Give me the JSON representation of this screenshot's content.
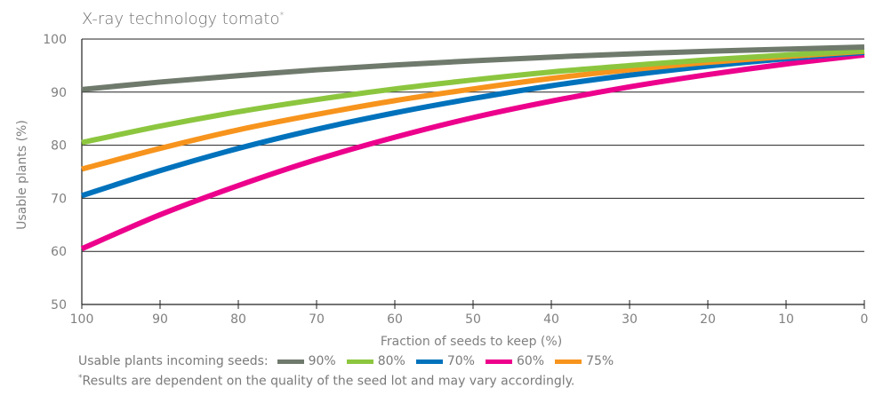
{
  "chart_data": {
    "type": "line",
    "title": "X-ray technology tomato",
    "title_marker": "*",
    "xlabel": "Fraction of seeds to keep (%)",
    "ylabel": "Usable plants (%)",
    "x": [
      100,
      90,
      80,
      70,
      60,
      50,
      40,
      30,
      20,
      10,
      0
    ],
    "x_tick_labels": [
      "100",
      "90",
      "80",
      "70",
      "60",
      "50",
      "40",
      "30",
      "20",
      "10",
      "0"
    ],
    "xlim": [
      100,
      0
    ],
    "ylim": [
      50,
      100
    ],
    "y_ticks": [
      50,
      60,
      70,
      80,
      90,
      100
    ],
    "y_tick_labels": [
      "50",
      "60",
      "70",
      "80",
      "90",
      "100"
    ],
    "grid": "horizontal",
    "legend_title": "Usable plants incoming seeds:",
    "series": [
      {
        "name": "90%",
        "color": "#6f7a6c",
        "values": [
          90.5,
          91.9,
          93.1,
          94.2,
          95.1,
          95.9,
          96.6,
          97.2,
          97.7,
          98.1,
          98.5
        ]
      },
      {
        "name": "80%",
        "color": "#8cc63f",
        "values": [
          80.5,
          83.6,
          86.3,
          88.6,
          90.6,
          92.3,
          93.8,
          95.0,
          96.1,
          97.0,
          97.8
        ]
      },
      {
        "name": "70%",
        "color": "#0072bc",
        "values": [
          70.5,
          75.2,
          79.4,
          83.0,
          86.1,
          88.8,
          91.2,
          93.2,
          94.9,
          96.3,
          97.5
        ]
      },
      {
        "name": "60%",
        "color": "#ec008c",
        "values": [
          60.5,
          66.9,
          72.4,
          77.3,
          81.5,
          85.2,
          88.3,
          91.0,
          93.3,
          95.3,
          97.0
        ]
      },
      {
        "name": "75%",
        "color": "#f7941d",
        "values": [
          75.5,
          79.4,
          82.9,
          85.8,
          88.4,
          90.6,
          92.6,
          94.2,
          95.6,
          96.7,
          97.7
        ]
      }
    ]
  },
  "footnote": {
    "marker": "*",
    "text": "Results are dependent on the quality of the seed lot and may vary accordingly."
  }
}
